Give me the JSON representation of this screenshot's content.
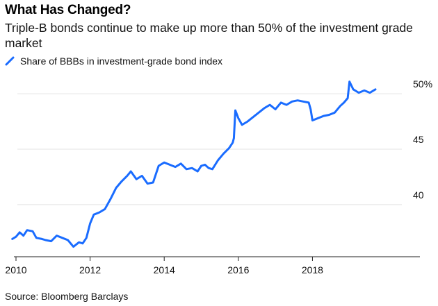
{
  "header": {
    "title": "What Has Changed?",
    "subtitle": "Triple-B bonds continue to make up more than 50% of the investment grade market"
  },
  "footer": {
    "source": "Source: Bloomberg Barclays"
  },
  "chart_data": {
    "type": "line",
    "title": "What Has Changed?",
    "subtitle": "Triple-B bonds continue to make up more than 50% of the investment grade market",
    "legend_position": "top-left",
    "grid": "horizontal",
    "line_color": "#1a6cff",
    "xlim": [
      2009.7,
      2020.9
    ],
    "ylim": [
      35.3,
      52.2
    ],
    "x_ticks": [
      2010,
      2012,
      2014,
      2016,
      2018
    ],
    "x_tick_labels": [
      "2010",
      "2012",
      "2014",
      "2016",
      "2018"
    ],
    "y_ticks": [
      40,
      45,
      50
    ],
    "y_tick_labels": [
      "40",
      "45",
      "50%"
    ],
    "series": [
      {
        "name": "Share of BBBs in investment-grade bond index",
        "x": [
          2009.9,
          2010.0,
          2010.1,
          2010.2,
          2010.3,
          2010.45,
          2010.55,
          2010.7,
          2010.8,
          2010.95,
          2011.1,
          2011.25,
          2011.4,
          2011.55,
          2011.7,
          2011.8,
          2011.9,
          2012.0,
          2012.1,
          2012.25,
          2012.4,
          2012.55,
          2012.7,
          2012.85,
          2013.0,
          2013.1,
          2013.25,
          2013.4,
          2013.55,
          2013.7,
          2013.85,
          2014.0,
          2014.15,
          2014.3,
          2014.45,
          2014.6,
          2014.75,
          2014.9,
          2015.0,
          2015.1,
          2015.2,
          2015.3,
          2015.45,
          2015.6,
          2015.75,
          2015.85,
          2015.88,
          2015.92,
          2016.0,
          2016.1,
          2016.25,
          2016.4,
          2016.55,
          2016.7,
          2016.85,
          2017.0,
          2017.15,
          2017.3,
          2017.45,
          2017.6,
          2017.75,
          2017.9,
          2017.95,
          2018.0,
          2018.15,
          2018.3,
          2018.45,
          2018.6,
          2018.75,
          2018.85,
          2018.95,
          2019.0,
          2019.1,
          2019.25,
          2019.4,
          2019.55,
          2019.7
        ],
        "values": [
          36.9,
          37.1,
          37.5,
          37.2,
          37.7,
          37.6,
          37.0,
          36.9,
          36.8,
          36.7,
          37.2,
          37.0,
          36.8,
          36.2,
          36.6,
          36.5,
          37.0,
          38.3,
          39.1,
          39.3,
          39.6,
          40.5,
          41.5,
          42.1,
          42.6,
          43.0,
          42.3,
          42.6,
          41.9,
          42.0,
          43.5,
          43.8,
          43.6,
          43.4,
          43.7,
          43.2,
          43.3,
          43.0,
          43.5,
          43.6,
          43.3,
          43.2,
          44.0,
          44.6,
          45.1,
          45.6,
          46.0,
          48.5,
          47.8,
          47.2,
          47.5,
          47.9,
          48.3,
          48.7,
          49.0,
          48.6,
          49.2,
          49.0,
          49.3,
          49.4,
          49.3,
          49.2,
          48.6,
          47.6,
          47.8,
          48.0,
          48.1,
          48.3,
          48.9,
          49.2,
          49.6,
          51.1,
          50.4,
          50.1,
          50.3,
          50.1,
          50.4
        ]
      }
    ]
  }
}
